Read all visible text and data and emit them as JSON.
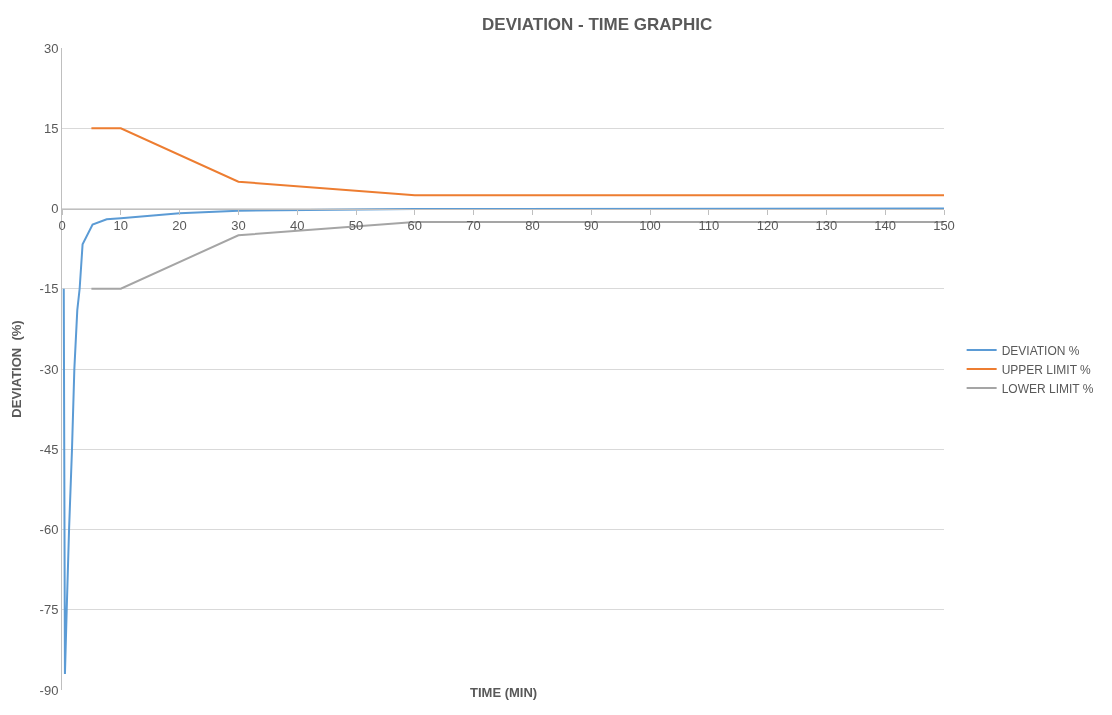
{
  "chart_data": {
    "type": "line",
    "title": "DEVIATION - TIME GRAPHIC",
    "xlabel": "TIME (MIN)",
    "ylabel": "DEVIATION  (%)",
    "xlim": [
      0,
      150
    ],
    "xticks": [
      0,
      10,
      20,
      30,
      40,
      50,
      60,
      70,
      80,
      90,
      100,
      110,
      120,
      130,
      140,
      150
    ],
    "ylim": [
      -90,
      30
    ],
    "yticks": [
      -90,
      -75,
      -60,
      -45,
      -30,
      -15,
      0,
      15,
      30
    ],
    "grid": "y",
    "legend": "right",
    "line_style": "solid",
    "marker": "none",
    "series": [
      {
        "name": "DEVIATION %",
        "color": "#5b9bd5",
        "x": [
          0.3,
          0.3,
          0.5,
          0.8,
          1.2,
          1.7,
          2.1,
          2.6,
          3.0,
          3.5,
          5.2,
          7.6,
          10,
          20,
          30,
          60,
          150
        ],
        "values": [
          -15,
          -15,
          -87,
          -75,
          -60,
          -45,
          -30,
          -19,
          -15,
          -6.7,
          -3,
          -2,
          -1.8,
          -0.9,
          -0.4,
          -0.1,
          0
        ]
      },
      {
        "name": "UPPER LIMIT %",
        "color": "#ed7d31",
        "x": [
          5,
          10,
          30,
          60,
          150
        ],
        "values": [
          15,
          15,
          5,
          2.5,
          2.5
        ]
      },
      {
        "name": "LOWER LIMIT %",
        "color": "#a5a5a5",
        "x": [
          5,
          10,
          30,
          60,
          150
        ],
        "values": [
          -15,
          -15,
          -5,
          -2.5,
          -2.5
        ]
      }
    ]
  }
}
